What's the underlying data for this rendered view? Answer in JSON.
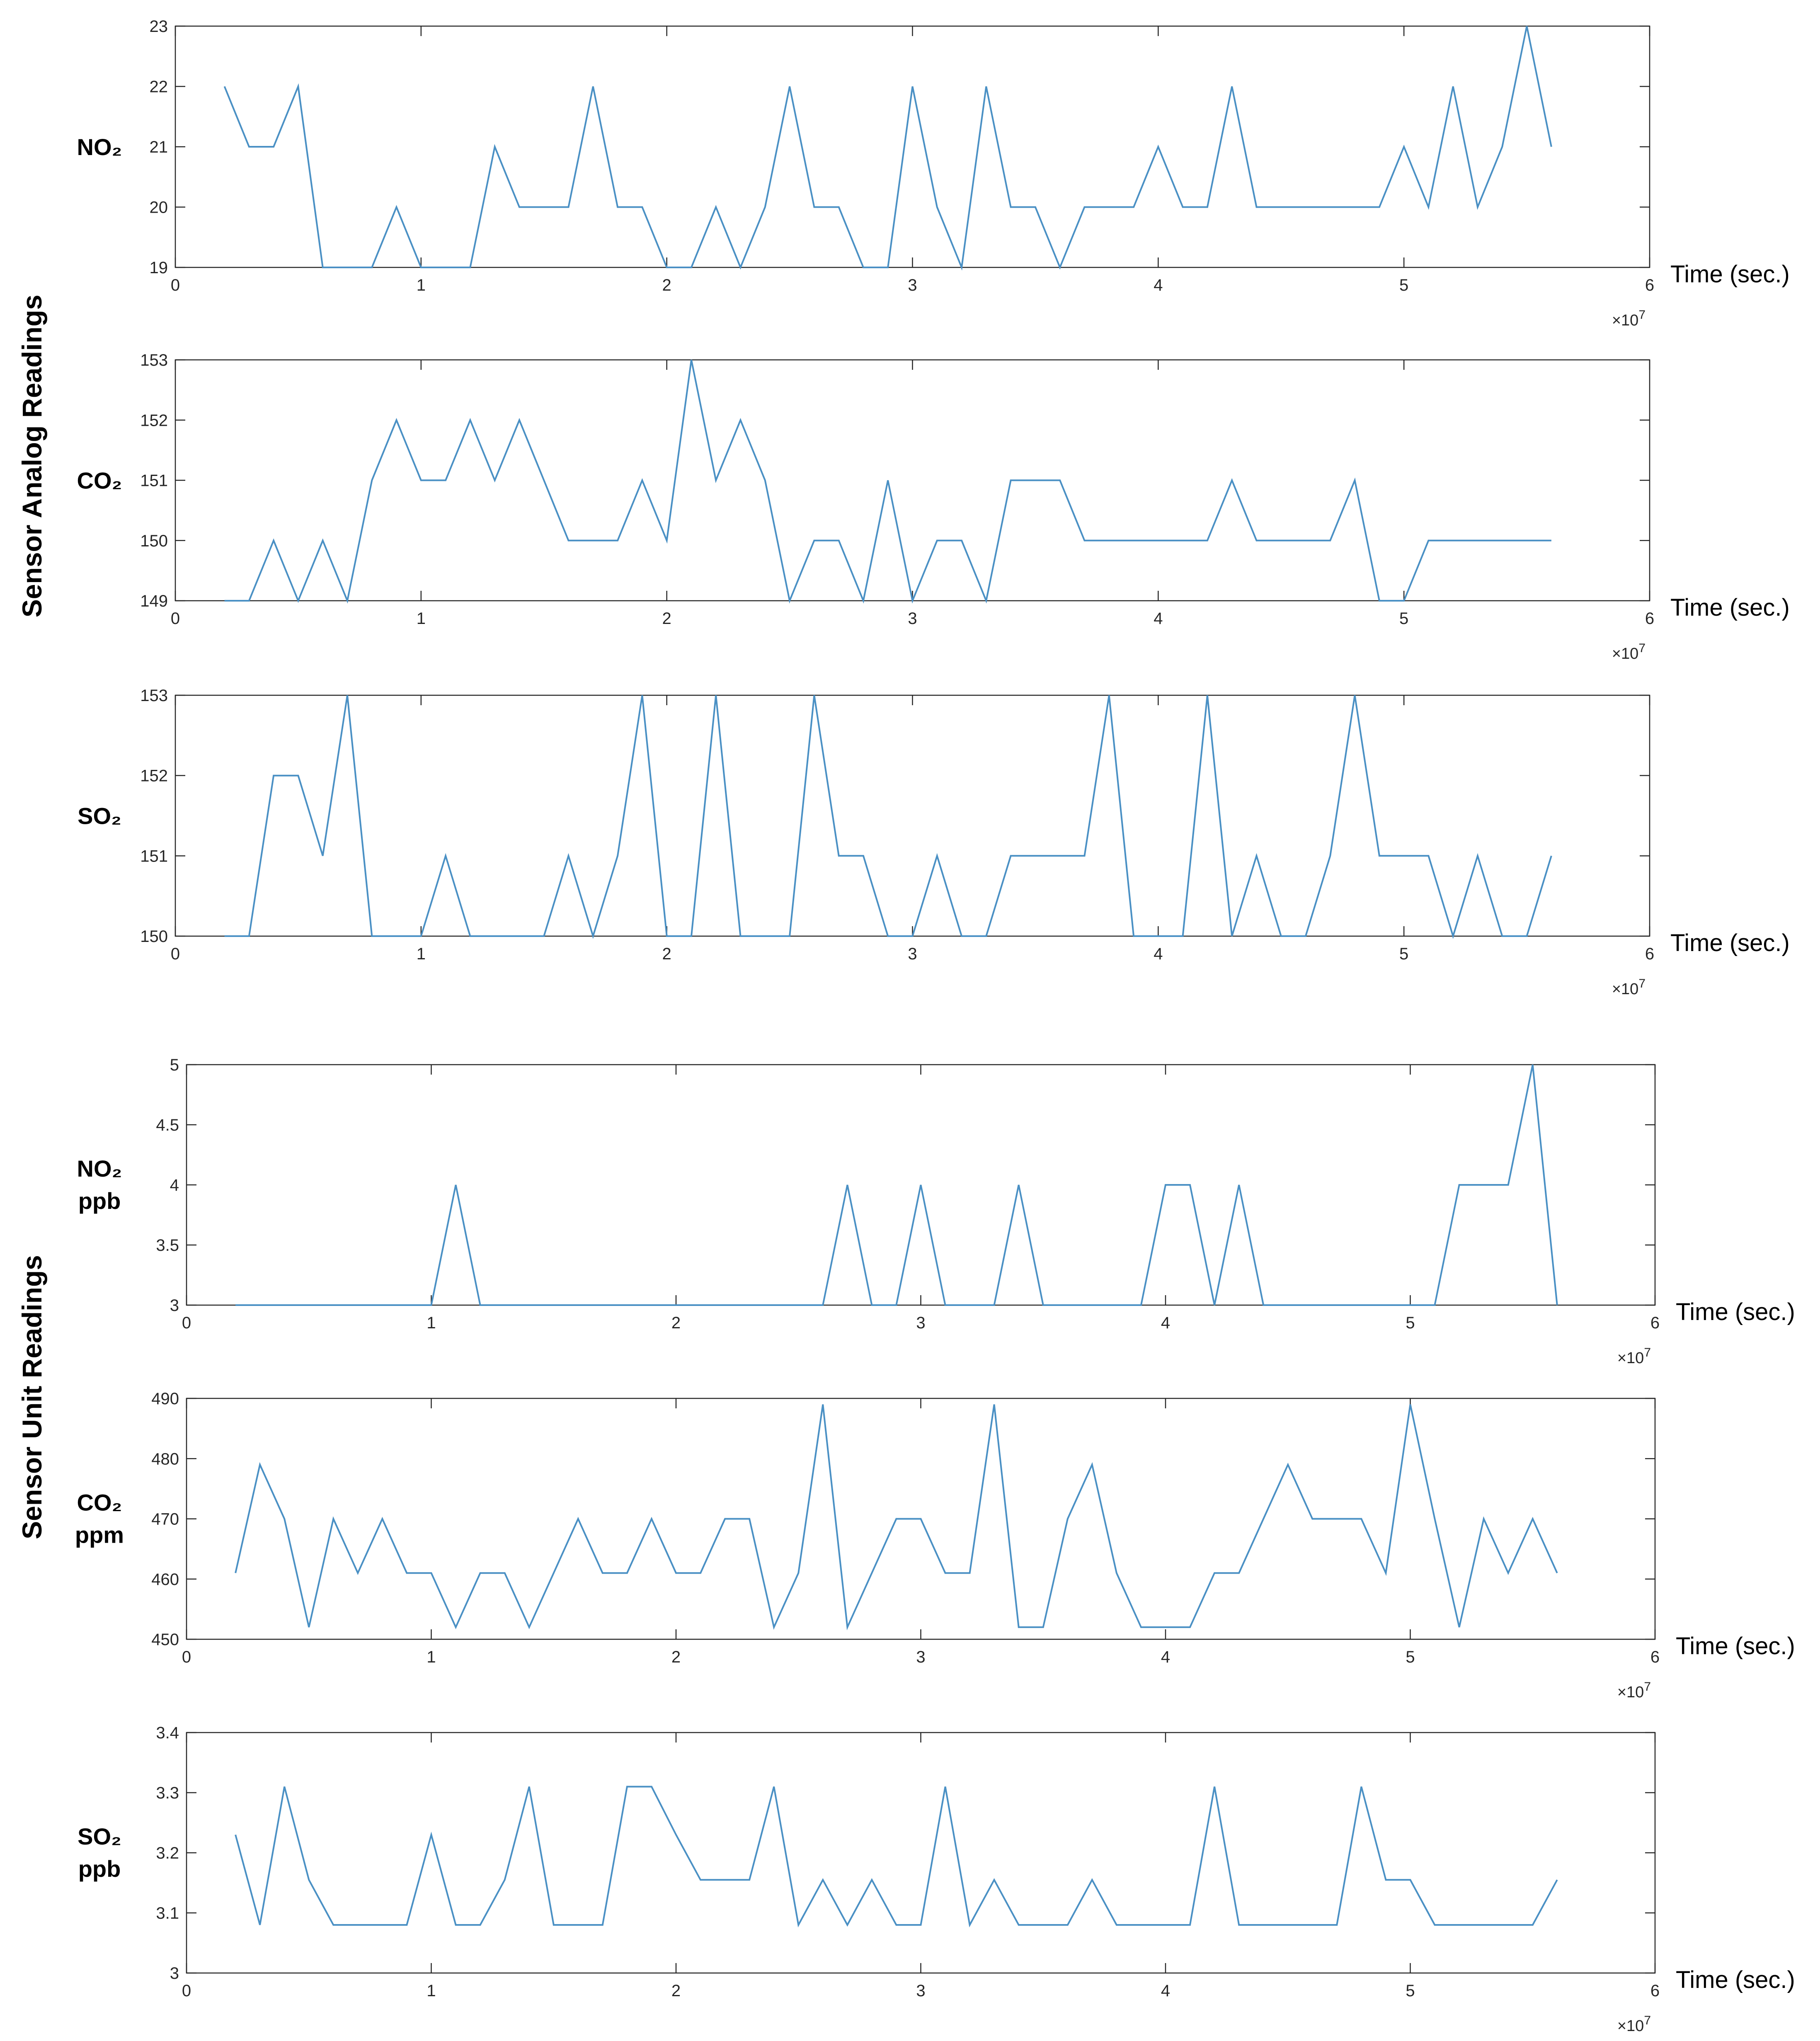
{
  "group_labels": [
    "Sensor Analog Readings",
    "Sensor Unit Readings"
  ],
  "chart_data": [
    {
      "type": "line",
      "ylabel": "NO₂",
      "xlabel": "Time (sec.)",
      "x_exponent": "×10",
      "x_exponent_power": "7",
      "xlim": [
        0,
        6
      ],
      "ylim": [
        19,
        23
      ],
      "x_ticks": [
        0,
        1,
        2,
        3,
        4,
        5,
        6
      ],
      "y_ticks": [
        19,
        20,
        21,
        22,
        23
      ],
      "line_color": "#4a90c4",
      "x": [
        0.2,
        0.3,
        0.4,
        0.5,
        0.6,
        0.7,
        0.8,
        0.9,
        1.0,
        1.1,
        1.2,
        1.3,
        1.4,
        1.5,
        1.6,
        1.7,
        1.8,
        1.9,
        2.0,
        2.1,
        2.2,
        2.3,
        2.4,
        2.5,
        2.6,
        2.7,
        2.8,
        2.9,
        3.0,
        3.1,
        3.2,
        3.3,
        3.4,
        3.5,
        3.6,
        3.7,
        3.8,
        3.9,
        4.0,
        4.1,
        4.2,
        4.3,
        4.4,
        4.5,
        4.6,
        4.7,
        4.8,
        4.9,
        5.0,
        5.1,
        5.2,
        5.3,
        5.4,
        5.5,
        5.6
      ],
      "y": [
        22,
        21,
        21,
        22,
        19,
        19,
        19,
        20,
        19,
        19,
        19,
        21,
        20,
        20,
        20,
        22,
        20,
        20,
        19,
        19,
        20,
        19,
        20,
        22,
        20,
        20,
        19,
        19,
        22,
        20,
        19,
        22,
        20,
        20,
        19,
        20,
        20,
        20,
        21,
        20,
        20,
        22,
        20,
        20,
        20,
        20,
        20,
        20,
        21,
        20,
        22,
        20,
        21,
        23,
        21
      ]
    },
    {
      "type": "line",
      "ylabel": "CO₂",
      "xlabel": "Time (sec.)",
      "x_exponent": "×10",
      "x_exponent_power": "7",
      "xlim": [
        0,
        6
      ],
      "ylim": [
        149,
        153
      ],
      "x_ticks": [
        0,
        1,
        2,
        3,
        4,
        5,
        6
      ],
      "y_ticks": [
        149,
        150,
        151,
        152,
        153
      ],
      "line_color": "#4a90c4",
      "x": [
        0.2,
        0.3,
        0.4,
        0.5,
        0.6,
        0.7,
        0.8,
        0.9,
        1.0,
        1.1,
        1.2,
        1.3,
        1.4,
        1.5,
        1.6,
        1.7,
        1.8,
        1.9,
        2.0,
        2.1,
        2.2,
        2.3,
        2.4,
        2.5,
        2.6,
        2.7,
        2.8,
        2.9,
        3.0,
        3.1,
        3.2,
        3.3,
        3.4,
        3.5,
        3.6,
        3.7,
        3.8,
        3.9,
        4.0,
        4.1,
        4.2,
        4.3,
        4.4,
        4.5,
        4.6,
        4.7,
        4.8,
        4.9,
        5.0,
        5.1,
        5.2,
        5.3,
        5.4,
        5.5,
        5.6
      ],
      "y": [
        149,
        149,
        150,
        149,
        150,
        149,
        151,
        152,
        151,
        151,
        152,
        151,
        152,
        151,
        150,
        150,
        150,
        151,
        150,
        153,
        151,
        152,
        151,
        149,
        150,
        150,
        149,
        151,
        149,
        150,
        150,
        149,
        151,
        151,
        151,
        150,
        150,
        150,
        150,
        150,
        150,
        151,
        150,
        150,
        150,
        150,
        151,
        149,
        149,
        150,
        150,
        150,
        150,
        150,
        150
      ]
    },
    {
      "type": "line",
      "ylabel": "SO₂",
      "xlabel": "Time (sec.)",
      "x_exponent": "×10",
      "x_exponent_power": "7",
      "xlim": [
        0,
        6
      ],
      "ylim": [
        150,
        153
      ],
      "x_ticks": [
        0,
        1,
        2,
        3,
        4,
        5,
        6
      ],
      "y_ticks": [
        150,
        151,
        152,
        153
      ],
      "line_color": "#4a90c4",
      "x": [
        0.2,
        0.3,
        0.4,
        0.5,
        0.6,
        0.7,
        0.8,
        0.9,
        1.0,
        1.1,
        1.2,
        1.3,
        1.4,
        1.5,
        1.6,
        1.7,
        1.8,
        1.9,
        2.0,
        2.1,
        2.2,
        2.3,
        2.4,
        2.5,
        2.6,
        2.7,
        2.8,
        2.9,
        3.0,
        3.1,
        3.2,
        3.3,
        3.4,
        3.5,
        3.6,
        3.7,
        3.8,
        3.9,
        4.0,
        4.1,
        4.2,
        4.3,
        4.4,
        4.5,
        4.6,
        4.7,
        4.8,
        4.9,
        5.0,
        5.1,
        5.2,
        5.3,
        5.4,
        5.5,
        5.6
      ],
      "y": [
        150,
        150,
        152,
        152,
        151,
        153,
        150,
        150,
        150,
        151,
        150,
        150,
        150,
        150,
        151,
        150,
        151,
        153,
        150,
        150,
        153,
        150,
        150,
        150,
        153,
        151,
        151,
        150,
        150,
        151,
        150,
        150,
        151,
        151,
        151,
        151,
        153,
        150,
        150,
        150,
        153,
        150,
        151,
        150,
        150,
        151,
        153,
        151,
        151,
        151,
        150,
        151,
        150,
        150,
        151
      ]
    },
    {
      "type": "line",
      "ylabel": "NO₂",
      "ylabel2": "ppb",
      "xlabel": "Time (sec.)",
      "x_exponent": "×10",
      "x_exponent_power": "7",
      "xlim": [
        0,
        6
      ],
      "ylim": [
        3,
        5
      ],
      "x_ticks": [
        0,
        1,
        2,
        3,
        4,
        5,
        6
      ],
      "y_ticks": [
        3,
        3.5,
        4,
        4.5,
        5
      ],
      "line_color": "#4a90c4",
      "x": [
        0.2,
        0.3,
        0.4,
        0.5,
        0.6,
        0.7,
        0.8,
        0.9,
        1.0,
        1.1,
        1.2,
        1.3,
        1.4,
        1.5,
        1.6,
        1.7,
        1.8,
        1.9,
        2.0,
        2.1,
        2.2,
        2.3,
        2.4,
        2.5,
        2.6,
        2.7,
        2.8,
        2.9,
        3.0,
        3.1,
        3.2,
        3.3,
        3.4,
        3.5,
        3.6,
        3.7,
        3.8,
        3.9,
        4.0,
        4.1,
        4.2,
        4.3,
        4.4,
        4.5,
        4.6,
        4.7,
        4.8,
        4.9,
        5.0,
        5.1,
        5.2,
        5.3,
        5.4,
        5.5,
        5.6
      ],
      "y": [
        3,
        3,
        3,
        3,
        3,
        3,
        3,
        3,
        3,
        4,
        3,
        3,
        3,
        3,
        3,
        3,
        3,
        3,
        3,
        3,
        3,
        3,
        3,
        3,
        3,
        4,
        3,
        3,
        4,
        3,
        3,
        3,
        4,
        3,
        3,
        3,
        3,
        3,
        4,
        4,
        3,
        4,
        3,
        3,
        3,
        3,
        3,
        3,
        3,
        3,
        4,
        4,
        4,
        5,
        3
      ]
    },
    {
      "type": "line",
      "ylabel": "CO₂",
      "ylabel2": "ppm",
      "xlabel": "Time (sec.)",
      "x_exponent": "×10",
      "x_exponent_power": "7",
      "xlim": [
        0,
        6
      ],
      "ylim": [
        450,
        490
      ],
      "x_ticks": [
        0,
        1,
        2,
        3,
        4,
        5,
        6
      ],
      "y_ticks": [
        450,
        460,
        470,
        480,
        490
      ],
      "line_color": "#4a90c4",
      "x": [
        0.2,
        0.3,
        0.4,
        0.5,
        0.6,
        0.7,
        0.8,
        0.9,
        1.0,
        1.1,
        1.2,
        1.3,
        1.4,
        1.5,
        1.6,
        1.7,
        1.8,
        1.9,
        2.0,
        2.1,
        2.2,
        2.3,
        2.4,
        2.5,
        2.6,
        2.7,
        2.8,
        2.9,
        3.0,
        3.1,
        3.2,
        3.3,
        3.4,
        3.5,
        3.6,
        3.7,
        3.8,
        3.9,
        4.0,
        4.1,
        4.2,
        4.3,
        4.4,
        4.5,
        4.6,
        4.7,
        4.8,
        4.9,
        5.0,
        5.1,
        5.2,
        5.3,
        5.4,
        5.5,
        5.6
      ],
      "y": [
        461,
        479,
        470,
        452,
        470,
        461,
        470,
        461,
        461,
        452,
        461,
        461,
        452,
        461,
        470,
        461,
        461,
        470,
        461,
        461,
        470,
        470,
        452,
        461,
        489,
        452,
        461,
        470,
        470,
        461,
        461,
        489,
        452,
        452,
        470,
        479,
        461,
        452,
        452,
        452,
        461,
        461,
        470,
        479,
        470,
        470,
        470,
        461,
        489,
        470,
        452,
        470,
        461,
        470,
        461
      ]
    },
    {
      "type": "line",
      "ylabel": "SO₂",
      "ylabel2": "ppb",
      "xlabel": "Time (sec.)",
      "x_exponent": "×10",
      "x_exponent_power": "7",
      "xlim": [
        0,
        6
      ],
      "ylim": [
        3,
        3.4
      ],
      "x_ticks": [
        0,
        1,
        2,
        3,
        4,
        5,
        6
      ],
      "y_ticks": [
        3,
        3.1,
        3.2,
        3.3,
        3.4
      ],
      "line_color": "#4a90c4",
      "x": [
        0.2,
        0.3,
        0.4,
        0.5,
        0.6,
        0.7,
        0.8,
        0.9,
        1.0,
        1.1,
        1.2,
        1.3,
        1.4,
        1.5,
        1.6,
        1.7,
        1.8,
        1.9,
        2.0,
        2.1,
        2.2,
        2.3,
        2.4,
        2.5,
        2.6,
        2.7,
        2.8,
        2.9,
        3.0,
        3.1,
        3.2,
        3.3,
        3.4,
        3.5,
        3.6,
        3.7,
        3.8,
        3.9,
        4.0,
        4.1,
        4.2,
        4.3,
        4.4,
        4.5,
        4.6,
        4.7,
        4.8,
        4.9,
        5.0,
        5.1,
        5.2,
        5.3,
        5.4,
        5.5,
        5.6
      ],
      "y": [
        3.23,
        3.08,
        3.31,
        3.155,
        3.08,
        3.08,
        3.08,
        3.08,
        3.23,
        3.08,
        3.08,
        3.155,
        3.31,
        3.08,
        3.08,
        3.08,
        3.31,
        3.31,
        3.23,
        3.155,
        3.155,
        3.155,
        3.31,
        3.08,
        3.155,
        3.08,
        3.155,
        3.08,
        3.08,
        3.31,
        3.08,
        3.155,
        3.08,
        3.08,
        3.08,
        3.155,
        3.08,
        3.08,
        3.08,
        3.08,
        3.31,
        3.08,
        3.08,
        3.08,
        3.08,
        3.08,
        3.31,
        3.155,
        3.155,
        3.08,
        3.08,
        3.08,
        3.08,
        3.08,
        3.155
      ]
    }
  ]
}
